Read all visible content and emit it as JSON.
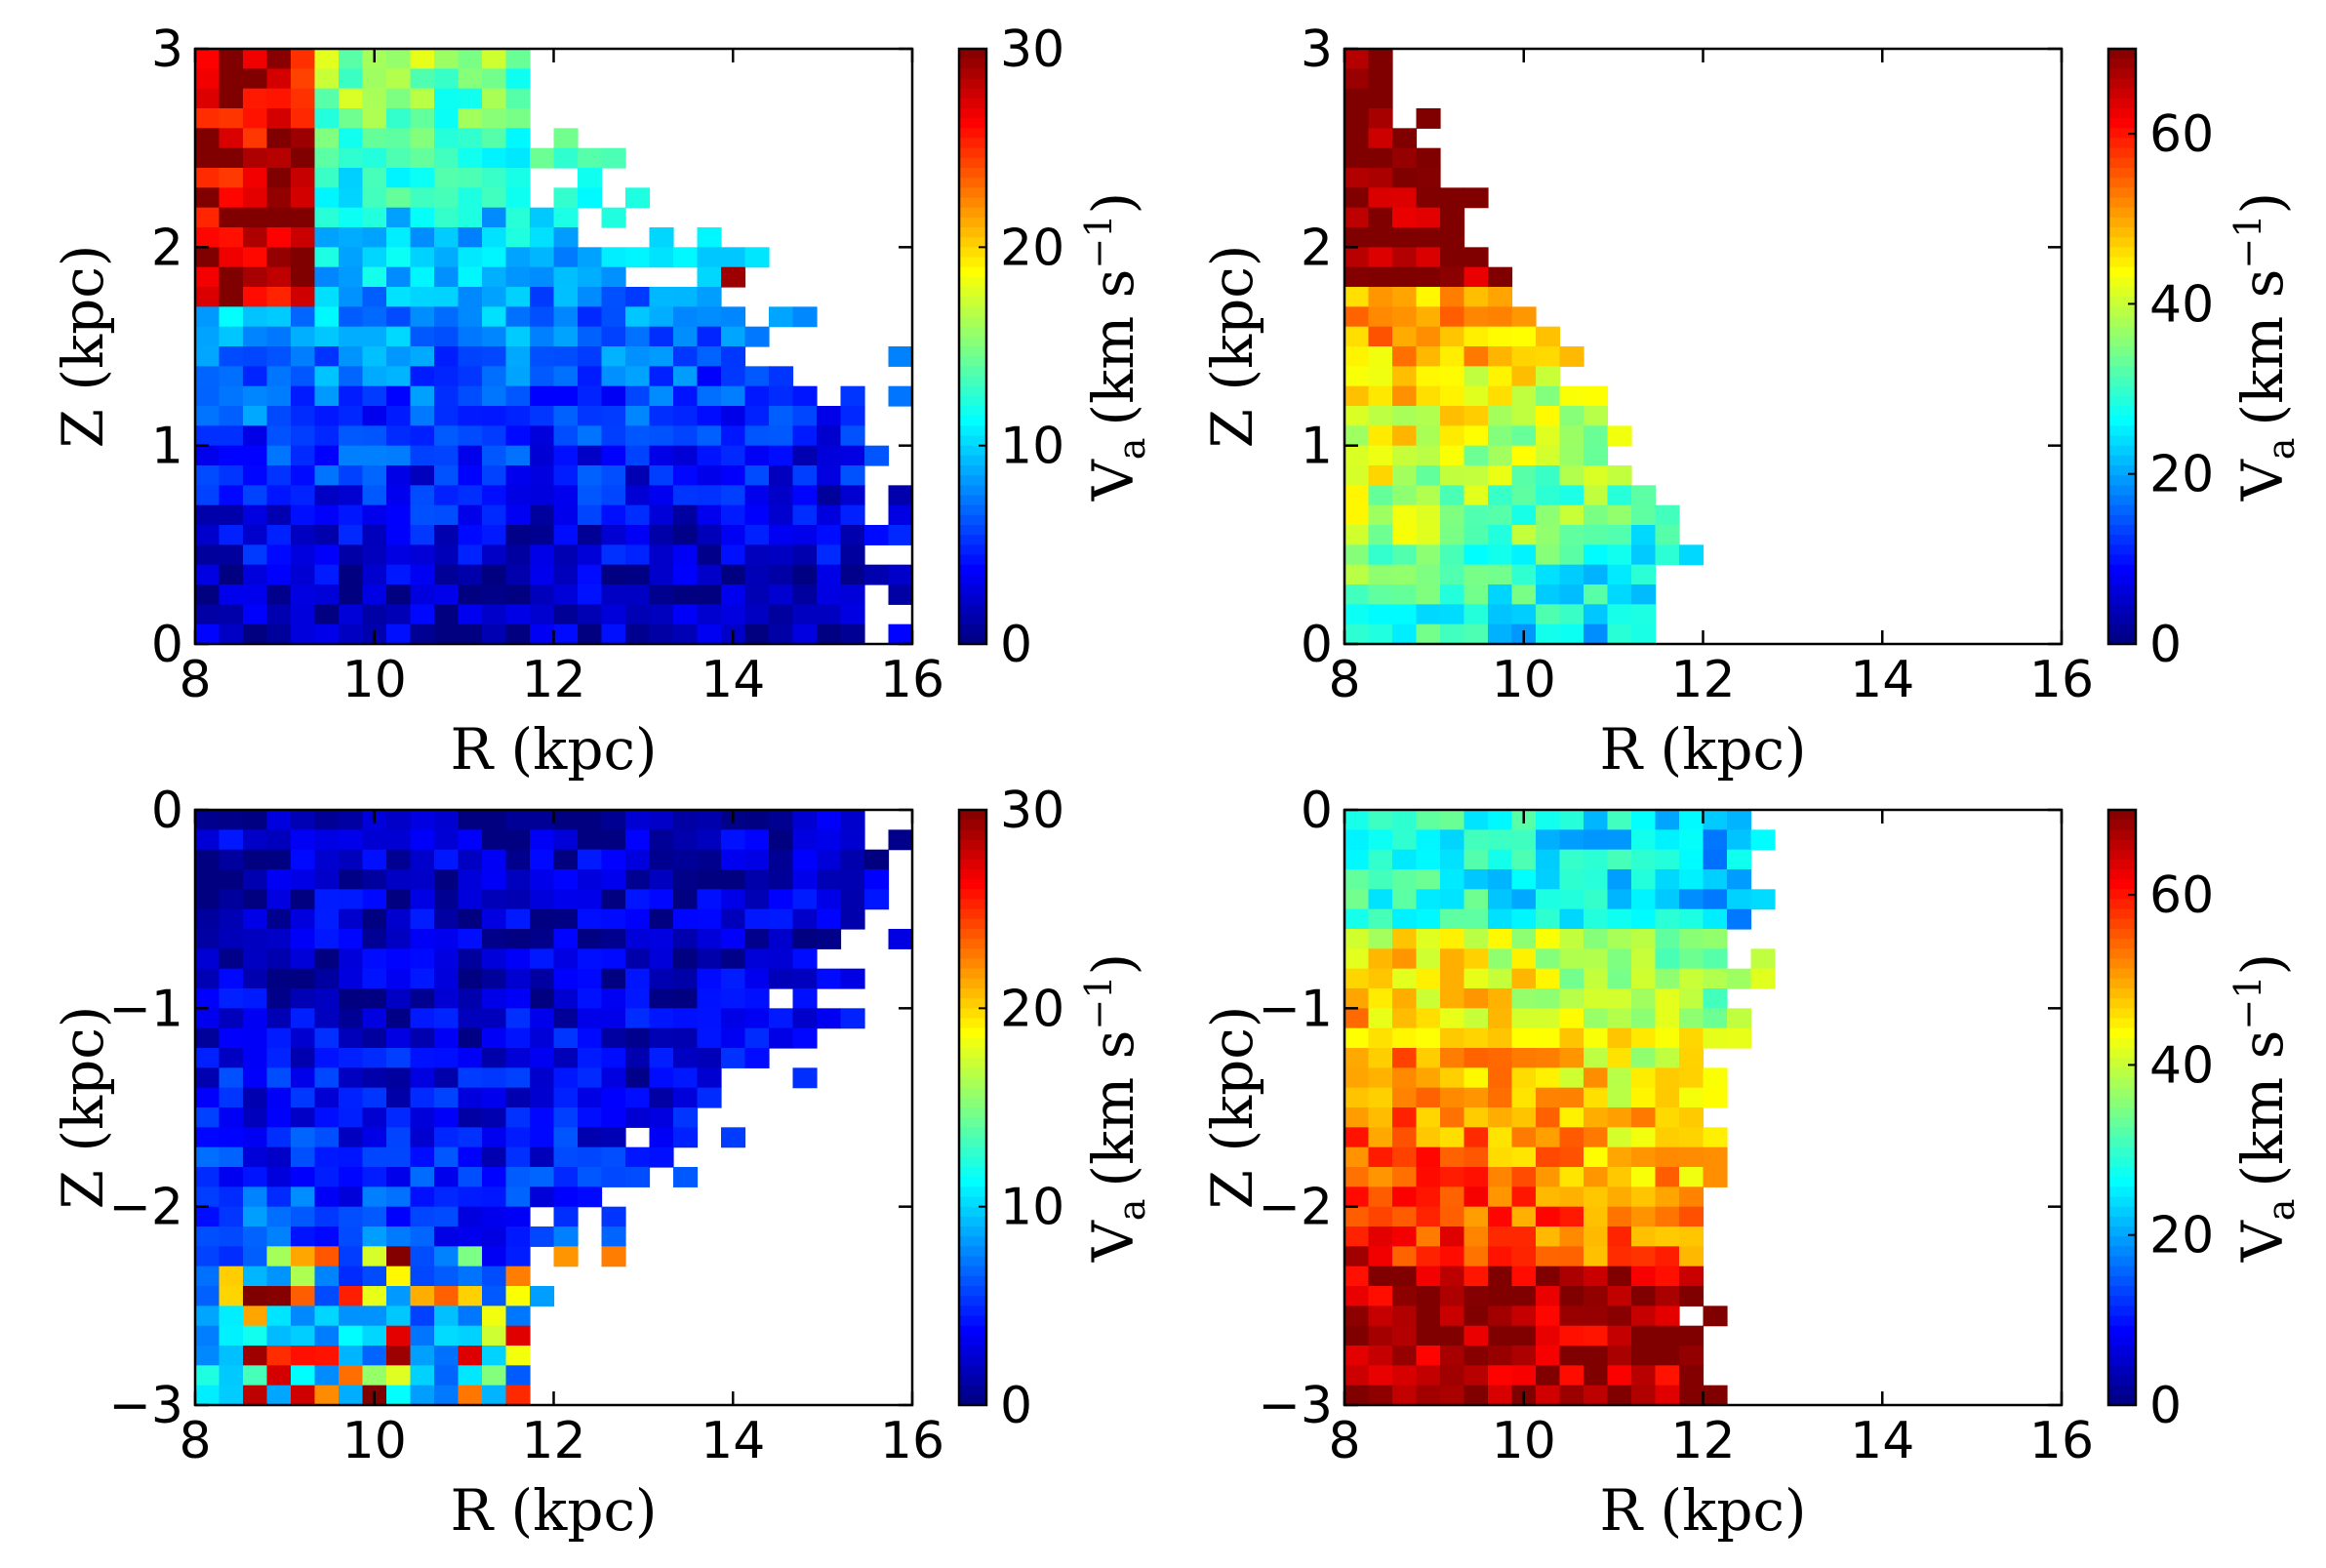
{
  "chart_data": [
    {
      "type": "heatmap",
      "panel": "top-left",
      "xlabel": "R (kpc)",
      "ylabel": "Z (kpc)",
      "xlim": [
        8,
        16
      ],
      "ylim": [
        0,
        3
      ],
      "xticks": [
        "8",
        "10",
        "12",
        "14",
        "16"
      ],
      "yticks": [
        "0",
        "1",
        "2",
        "3"
      ],
      "colorbar": {
        "label_main": "V",
        "label_sub": "a",
        "label_units": "(km s",
        "label_exp": "−1",
        "label_close": ")",
        "range": [
          0,
          30
        ],
        "ticks": [
          "0",
          "10",
          "20",
          "30"
        ]
      },
      "grid": {
        "cols": 30,
        "rows": 30
      },
      "pattern": "upper-thick",
      "seed": 11
    },
    {
      "type": "heatmap",
      "panel": "top-right",
      "xlabel": "R (kpc)",
      "ylabel": "Z (kpc)",
      "xlim": [
        8,
        16
      ],
      "ylim": [
        0,
        3
      ],
      "xticks": [
        "8",
        "10",
        "12",
        "14",
        "16"
      ],
      "yticks": [
        "0",
        "1",
        "2",
        "3"
      ],
      "colorbar": {
        "label_main": "V",
        "label_sub": "a",
        "label_units": "(km s",
        "label_exp": "−1",
        "label_close": ")",
        "range": [
          0,
          70
        ],
        "ticks": [
          "0",
          "20",
          "40",
          "60"
        ]
      },
      "grid": {
        "cols": 30,
        "rows": 30
      },
      "pattern": "upper-wedge",
      "seed": 23
    },
    {
      "type": "heatmap",
      "panel": "bottom-left",
      "xlabel": "R (kpc)",
      "ylabel": "Z (kpc)",
      "xlim": [
        8,
        16
      ],
      "ylim": [
        -3,
        0
      ],
      "xticks": [
        "8",
        "10",
        "12",
        "14",
        "16"
      ],
      "yticks": [
        "0",
        "−1",
        "−2",
        "−3"
      ],
      "colorbar": {
        "label_main": "V",
        "label_sub": "a",
        "label_units": "(km s",
        "label_exp": "−1",
        "label_close": ")",
        "range": [
          0,
          30
        ],
        "ticks": [
          "0",
          "10",
          "20",
          "30"
        ]
      },
      "grid": {
        "cols": 30,
        "rows": 30
      },
      "pattern": "lower-thick",
      "seed": 37
    },
    {
      "type": "heatmap",
      "panel": "bottom-right",
      "xlabel": "R (kpc)",
      "ylabel": "Z (kpc)",
      "xlim": [
        8,
        16
      ],
      "ylim": [
        -3,
        0
      ],
      "xticks": [
        "8",
        "10",
        "12",
        "14",
        "16"
      ],
      "yticks": [
        "0",
        "−1",
        "−2",
        "−3"
      ],
      "colorbar": {
        "label_main": "V",
        "label_sub": "a",
        "label_units": "(km s",
        "label_exp": "−1",
        "label_close": ")",
        "range": [
          0,
          70
        ],
        "ticks": [
          "0",
          "20",
          "40",
          "60"
        ]
      },
      "grid": {
        "cols": 30,
        "rows": 30
      },
      "pattern": "lower-wedge",
      "seed": 53
    }
  ]
}
